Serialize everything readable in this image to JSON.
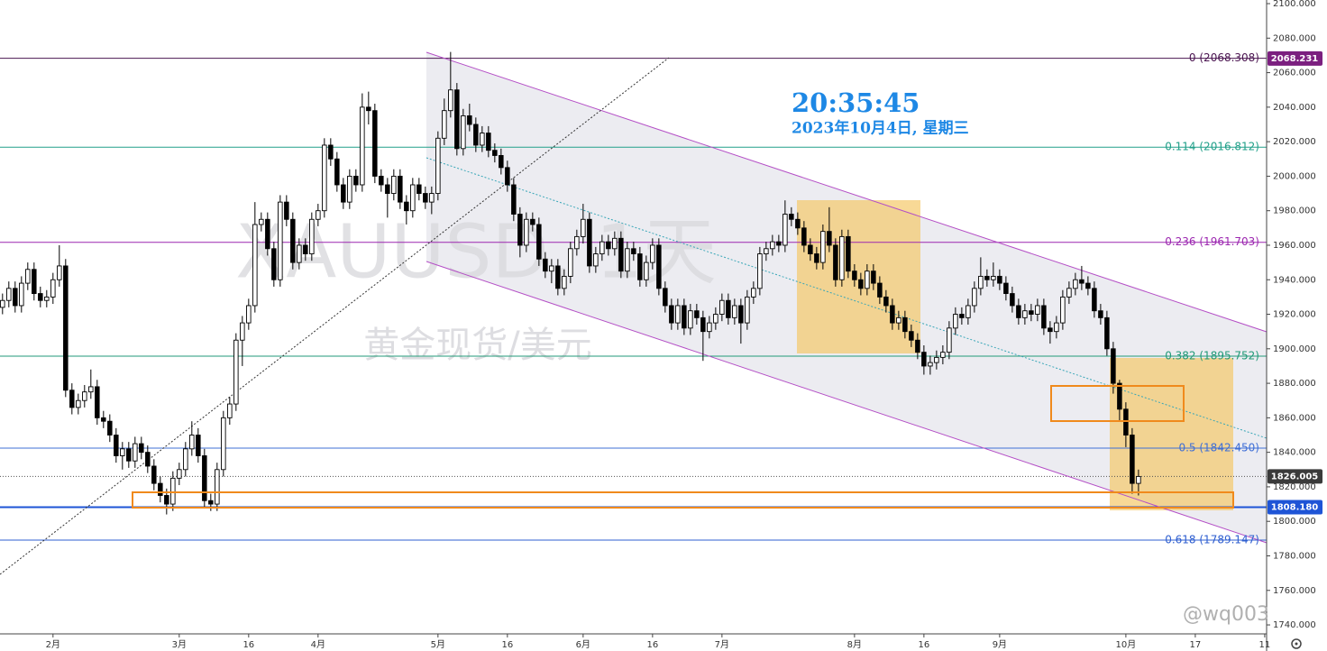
{
  "chart_data": {
    "type": "candlestick",
    "title": "XAUUSD, 1天",
    "subtitle": "黄金现货/美元",
    "clock": {
      "time": "20:35:45",
      "date": "2023年10月4日, 星期三"
    },
    "watermark": "@wq003",
    "colors": {
      "up": "#ffffff",
      "down": "#000000",
      "edge": "#000000"
    },
    "ylim": [
      1734.8,
      2102.1
    ],
    "xlim": [
      -0.4,
      200.3
    ],
    "yticks": [
      {
        "value": 1740,
        "label": "1740.000"
      },
      {
        "value": 1760,
        "label": "1760.000"
      },
      {
        "value": 1780,
        "label": "1780.000"
      },
      {
        "value": 1800,
        "label": "1800.000"
      },
      {
        "value": 1820,
        "label": "1820.000"
      },
      {
        "value": 1840,
        "label": "1840.000"
      },
      {
        "value": 1860,
        "label": "1860.000"
      },
      {
        "value": 1880,
        "label": "1880.000"
      },
      {
        "value": 1900,
        "label": "1900.000"
      },
      {
        "value": 1920,
        "label": "1920.000"
      },
      {
        "value": 1940,
        "label": "1940.000"
      },
      {
        "value": 1960,
        "label": "1960.000"
      },
      {
        "value": 1980,
        "label": "1980.000"
      },
      {
        "value": 2000,
        "label": "2000.000"
      },
      {
        "value": 2020,
        "label": "2020.000"
      },
      {
        "value": 2040,
        "label": "2040.000"
      },
      {
        "value": 2060,
        "label": "2060.000"
      },
      {
        "value": 2080,
        "label": "2080.000"
      },
      {
        "value": 2100,
        "label": "2100.000"
      }
    ],
    "xticks": [
      {
        "value": 8,
        "label": "2月"
      },
      {
        "value": 28,
        "label": "3月"
      },
      {
        "value": 39,
        "label": "16"
      },
      {
        "value": 50,
        "label": "4月"
      },
      {
        "value": 69,
        "label": "5月"
      },
      {
        "value": 80,
        "label": "16"
      },
      {
        "value": 92,
        "label": "6月"
      },
      {
        "value": 103,
        "label": "16"
      },
      {
        "value": 114,
        "label": "7月"
      },
      {
        "value": 135,
        "label": "8月"
      },
      {
        "value": 146,
        "label": "16"
      },
      {
        "value": 158,
        "label": "9月"
      },
      {
        "value": 178,
        "label": "10月"
      },
      {
        "value": 189,
        "label": "17"
      },
      {
        "value": 200,
        "label": "11"
      }
    ],
    "fib_levels": [
      {
        "value": 2068.308,
        "label": "0 (2068.308)",
        "color": "#4a1450"
      },
      {
        "value": 2016.812,
        "label": "0.114 (2016.812)",
        "color": "#22a08a"
      },
      {
        "value": 1961.703,
        "label": "0.236 (1961.703)",
        "color": "#9c27b0"
      },
      {
        "value": 1895.752,
        "label": "0.382 (1895.752)",
        "color": "#229a78"
      },
      {
        "value": 1842.45,
        "label": "0.5 (1842.450)",
        "color": "#3f6fd6"
      },
      {
        "value": 1789.147,
        "label": "0.618 (1789.147)",
        "color": "#2f5fd0"
      }
    ],
    "price_labels": [
      {
        "value": 2068.231,
        "label": "2068.231",
        "color": "#7b1f7f"
      },
      {
        "value": 1826.005,
        "label": "1826.005",
        "color": "#3a3a3a"
      },
      {
        "value": 1808.18,
        "label": "1808.180",
        "color": "#1e54d6"
      }
    ],
    "support_line": {
      "value": 1808.18,
      "color": "#1e54d6"
    },
    "ohlc": [
      [
        1924,
        1932,
        1920,
        1928
      ],
      [
        1928,
        1939,
        1924,
        1935
      ],
      [
        1935,
        1939,
        1921,
        1925
      ],
      [
        1925,
        1942,
        1921,
        1938
      ],
      [
        1938,
        1950,
        1934,
        1946
      ],
      [
        1946,
        1950,
        1928,
        1932
      ],
      [
        1932,
        1936,
        1924,
        1928
      ],
      [
        1928,
        1934,
        1924,
        1930
      ],
      [
        1930,
        1944,
        1926,
        1940
      ],
      [
        1940,
        1960,
        1936,
        1948
      ],
      [
        1948,
        1952,
        1872,
        1876
      ],
      [
        1876,
        1880,
        1862,
        1866
      ],
      [
        1866,
        1874,
        1862,
        1870
      ],
      [
        1870,
        1879,
        1866,
        1875
      ],
      [
        1875,
        1888,
        1871,
        1878
      ],
      [
        1878,
        1882,
        1856,
        1860
      ],
      [
        1860,
        1864,
        1854,
        1858
      ],
      [
        1858,
        1862,
        1846,
        1850
      ],
      [
        1850,
        1854,
        1834,
        1838
      ],
      [
        1838,
        1846,
        1830,
        1842
      ],
      [
        1842,
        1846,
        1831,
        1835
      ],
      [
        1835,
        1849,
        1831,
        1845
      ],
      [
        1845,
        1849,
        1836,
        1840
      ],
      [
        1840,
        1844,
        1828,
        1832
      ],
      [
        1832,
        1836,
        1818,
        1822
      ],
      [
        1822,
        1826,
        1811,
        1815
      ],
      [
        1815,
        1819,
        1804,
        1810
      ],
      [
        1810,
        1829,
        1806,
        1825
      ],
      [
        1825,
        1834,
        1821,
        1830
      ],
      [
        1830,
        1846,
        1826,
        1842
      ],
      [
        1842,
        1858,
        1838,
        1850
      ],
      [
        1850,
        1854,
        1834,
        1838
      ],
      [
        1838,
        1842,
        1808,
        1812
      ],
      [
        1812,
        1816,
        1806,
        1810
      ],
      [
        1810,
        1834,
        1806,
        1830
      ],
      [
        1830,
        1864,
        1826,
        1860
      ],
      [
        1860,
        1872,
        1856,
        1868
      ],
      [
        1868,
        1909,
        1864,
        1905
      ],
      [
        1905,
        1919,
        1890,
        1915
      ],
      [
        1915,
        1929,
        1911,
        1925
      ],
      [
        1925,
        1985,
        1921,
        1972
      ],
      [
        1972,
        1979,
        1968,
        1975
      ],
      [
        1975,
        1979,
        1954,
        1958
      ],
      [
        1958,
        1962,
        1936,
        1940
      ],
      [
        1940,
        1989,
        1936,
        1985
      ],
      [
        1985,
        1989,
        1971,
        1975
      ],
      [
        1975,
        1979,
        1946,
        1950
      ],
      [
        1950,
        1964,
        1946,
        1960
      ],
      [
        1960,
        1964,
        1951,
        1955
      ],
      [
        1955,
        1979,
        1951,
        1975
      ],
      [
        1975,
        1984,
        1971,
        1980
      ],
      [
        1980,
        2022,
        1976,
        2018
      ],
      [
        2018,
        2022,
        2006,
        2010
      ],
      [
        2010,
        2014,
        1991,
        1995
      ],
      [
        1995,
        1999,
        1981,
        1985
      ],
      [
        1985,
        2004,
        1981,
        2000
      ],
      [
        2000,
        2004,
        1991,
        1995
      ],
      [
        1995,
        2048,
        1991,
        2040
      ],
      [
        2040,
        2049,
        2030,
        2038
      ],
      [
        2038,
        2042,
        1996,
        2000
      ],
      [
        2000,
        2004,
        1991,
        1995
      ],
      [
        1995,
        1999,
        1976,
        1990
      ],
      [
        1990,
        2004,
        1986,
        2000
      ],
      [
        2000,
        2004,
        1981,
        1985
      ],
      [
        1985,
        1989,
        1972,
        1980
      ],
      [
        1980,
        1999,
        1976,
        1995
      ],
      [
        1995,
        1999,
        1986,
        1990
      ],
      [
        1990,
        1994,
        1981,
        1985
      ],
      [
        1985,
        1994,
        1978,
        1990
      ],
      [
        1990,
        2026,
        1986,
        2022
      ],
      [
        2022,
        2045,
        2018,
        2038
      ],
      [
        2038,
        2072,
        2034,
        2050
      ],
      [
        2050,
        2054,
        2012,
        2016
      ],
      [
        2016,
        2039,
        2012,
        2035
      ],
      [
        2035,
        2042,
        2026,
        2030
      ],
      [
        2030,
        2034,
        2014,
        2018
      ],
      [
        2018,
        2029,
        2014,
        2025
      ],
      [
        2025,
        2029,
        2011,
        2015
      ],
      [
        2015,
        2019,
        2008,
        2012
      ],
      [
        2012,
        2016,
        2001,
        2005
      ],
      [
        2005,
        2009,
        1991,
        1995
      ],
      [
        1995,
        1999,
        1974,
        1978
      ],
      [
        1978,
        1982,
        1953,
        1960
      ],
      [
        1960,
        1979,
        1956,
        1975
      ],
      [
        1975,
        1979,
        1968,
        1972
      ],
      [
        1972,
        1976,
        1948,
        1952
      ],
      [
        1952,
        1956,
        1941,
        1945
      ],
      [
        1945,
        1952,
        1938,
        1948
      ],
      [
        1948,
        1952,
        1931,
        1935
      ],
      [
        1935,
        1946,
        1931,
        1942
      ],
      [
        1942,
        1962,
        1938,
        1958
      ],
      [
        1958,
        1969,
        1954,
        1965
      ],
      [
        1965,
        1984,
        1961,
        1975
      ],
      [
        1975,
        1979,
        1944,
        1948
      ],
      [
        1948,
        1959,
        1944,
        1955
      ],
      [
        1955,
        1966,
        1951,
        1962
      ],
      [
        1962,
        1966,
        1954,
        1958
      ],
      [
        1958,
        1968,
        1954,
        1964
      ],
      [
        1964,
        1968,
        1941,
        1945
      ],
      [
        1945,
        1962,
        1941,
        1958
      ],
      [
        1958,
        1962,
        1951,
        1955
      ],
      [
        1955,
        1959,
        1936,
        1940
      ],
      [
        1940,
        1954,
        1936,
        1950
      ],
      [
        1950,
        1964,
        1946,
        1960
      ],
      [
        1960,
        1964,
        1931,
        1935
      ],
      [
        1935,
        1939,
        1921,
        1925
      ],
      [
        1925,
        1929,
        1911,
        1915
      ],
      [
        1915,
        1929,
        1911,
        1925
      ],
      [
        1925,
        1929,
        1908,
        1912
      ],
      [
        1912,
        1926,
        1908,
        1922
      ],
      [
        1922,
        1926,
        1914,
        1918
      ],
      [
        1918,
        1922,
        1893,
        1910
      ],
      [
        1910,
        1919,
        1906,
        1915
      ],
      [
        1915,
        1924,
        1911,
        1920
      ],
      [
        1920,
        1932,
        1916,
        1928
      ],
      [
        1928,
        1932,
        1914,
        1918
      ],
      [
        1918,
        1929,
        1914,
        1925
      ],
      [
        1925,
        1929,
        1903,
        1915
      ],
      [
        1915,
        1934,
        1911,
        1930
      ],
      [
        1930,
        1939,
        1926,
        1935
      ],
      [
        1935,
        1959,
        1931,
        1955
      ],
      [
        1955,
        1962,
        1951,
        1958
      ],
      [
        1958,
        1966,
        1954,
        1962
      ],
      [
        1962,
        1966,
        1956,
        1960
      ],
      [
        1960,
        1986,
        1956,
        1978
      ],
      [
        1978,
        1982,
        1971,
        1975
      ],
      [
        1975,
        1979,
        1966,
        1970
      ],
      [
        1970,
        1974,
        1956,
        1960
      ],
      [
        1960,
        1964,
        1951,
        1955
      ],
      [
        1955,
        1959,
        1946,
        1950
      ],
      [
        1950,
        1972,
        1946,
        1968
      ],
      [
        1968,
        1982,
        1956,
        1960
      ],
      [
        1960,
        1964,
        1936,
        1940
      ],
      [
        1940,
        1969,
        1936,
        1965
      ],
      [
        1965,
        1969,
        1941,
        1945
      ],
      [
        1945,
        1949,
        1936,
        1940
      ],
      [
        1940,
        1944,
        1931,
        1935
      ],
      [
        1935,
        1949,
        1931,
        1945
      ],
      [
        1945,
        1949,
        1934,
        1938
      ],
      [
        1938,
        1942,
        1926,
        1930
      ],
      [
        1930,
        1934,
        1921,
        1925
      ],
      [
        1925,
        1929,
        1911,
        1915
      ],
      [
        1915,
        1922,
        1911,
        1918
      ],
      [
        1918,
        1922,
        1906,
        1910
      ],
      [
        1910,
        1914,
        1901,
        1905
      ],
      [
        1905,
        1909,
        1894,
        1898
      ],
      [
        1898,
        1902,
        1885,
        1890
      ],
      [
        1890,
        1896,
        1885,
        1892
      ],
      [
        1892,
        1899,
        1888,
        1895
      ],
      [
        1895,
        1902,
        1891,
        1898
      ],
      [
        1898,
        1916,
        1894,
        1912
      ],
      [
        1912,
        1924,
        1908,
        1920
      ],
      [
        1920,
        1924,
        1914,
        1918
      ],
      [
        1918,
        1929,
        1914,
        1925
      ],
      [
        1925,
        1939,
        1921,
        1935
      ],
      [
        1935,
        1953,
        1931,
        1942
      ],
      [
        1942,
        1946,
        1936,
        1940
      ],
      [
        1940,
        1950,
        1936,
        1942
      ],
      [
        1942,
        1946,
        1934,
        1938
      ],
      [
        1938,
        1942,
        1928,
        1932
      ],
      [
        1932,
        1936,
        1921,
        1925
      ],
      [
        1925,
        1929,
        1914,
        1918
      ],
      [
        1918,
        1926,
        1914,
        1922
      ],
      [
        1922,
        1926,
        1916,
        1920
      ],
      [
        1920,
        1929,
        1916,
        1925
      ],
      [
        1925,
        1929,
        1908,
        1912
      ],
      [
        1912,
        1916,
        1903,
        1910
      ],
      [
        1910,
        1919,
        1906,
        1915
      ],
      [
        1915,
        1934,
        1911,
        1930
      ],
      [
        1930,
        1939,
        1926,
        1935
      ],
      [
        1935,
        1944,
        1931,
        1940
      ],
      [
        1940,
        1948,
        1934,
        1938
      ],
      [
        1938,
        1942,
        1931,
        1935
      ],
      [
        1935,
        1939,
        1918,
        1922
      ],
      [
        1922,
        1926,
        1914,
        1918
      ],
      [
        1918,
        1922,
        1896,
        1900
      ],
      [
        1900,
        1904,
        1874,
        1880
      ],
      [
        1880,
        1882,
        1858,
        1865
      ],
      [
        1865,
        1869,
        1843,
        1850
      ],
      [
        1850,
        1854,
        1816,
        1822
      ],
      [
        1822,
        1830,
        1815,
        1826.005
      ]
    ]
  }
}
